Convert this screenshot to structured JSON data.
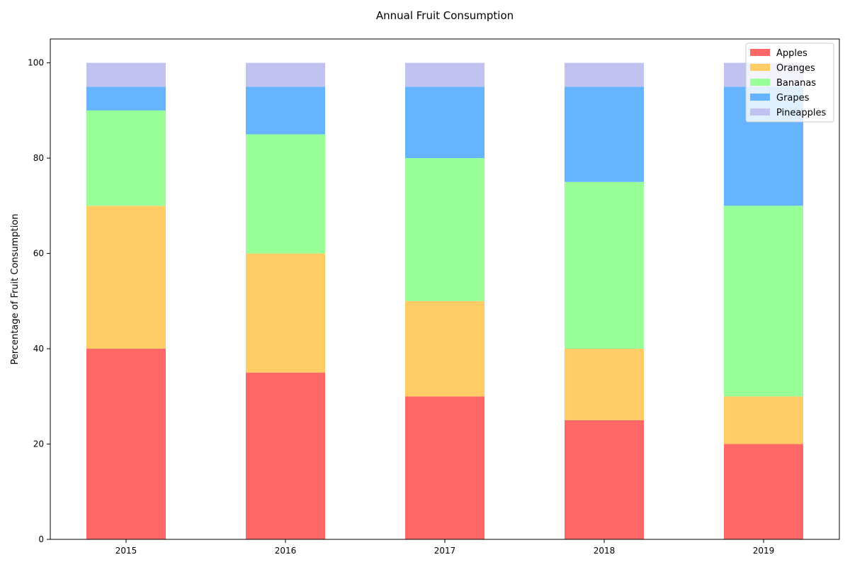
{
  "chart_data": {
    "type": "bar",
    "stacked": true,
    "title": "Annual Fruit Consumption",
    "xlabel": "",
    "ylabel": "Percentage of Fruit Consumption",
    "categories": [
      "2015",
      "2016",
      "2017",
      "2018",
      "2019"
    ],
    "ylim": [
      0,
      105
    ],
    "yticks": [
      0,
      20,
      40,
      60,
      80,
      100
    ],
    "grid": false,
    "legend_position": "top-right",
    "series": [
      {
        "name": "Apples",
        "color": "#ff6666",
        "values": [
          40,
          35,
          30,
          25,
          20
        ]
      },
      {
        "name": "Oranges",
        "color": "#ffcc66",
        "values": [
          30,
          25,
          20,
          15,
          10
        ]
      },
      {
        "name": "Bananas",
        "color": "#99ff99",
        "values": [
          20,
          25,
          30,
          35,
          40
        ]
      },
      {
        "name": "Grapes",
        "color": "#66b3ff",
        "values": [
          5,
          10,
          15,
          20,
          25
        ]
      },
      {
        "name": "Pineapples",
        "color": "#c2c2f0",
        "values": [
          5,
          5,
          5,
          5,
          5
        ]
      }
    ]
  }
}
